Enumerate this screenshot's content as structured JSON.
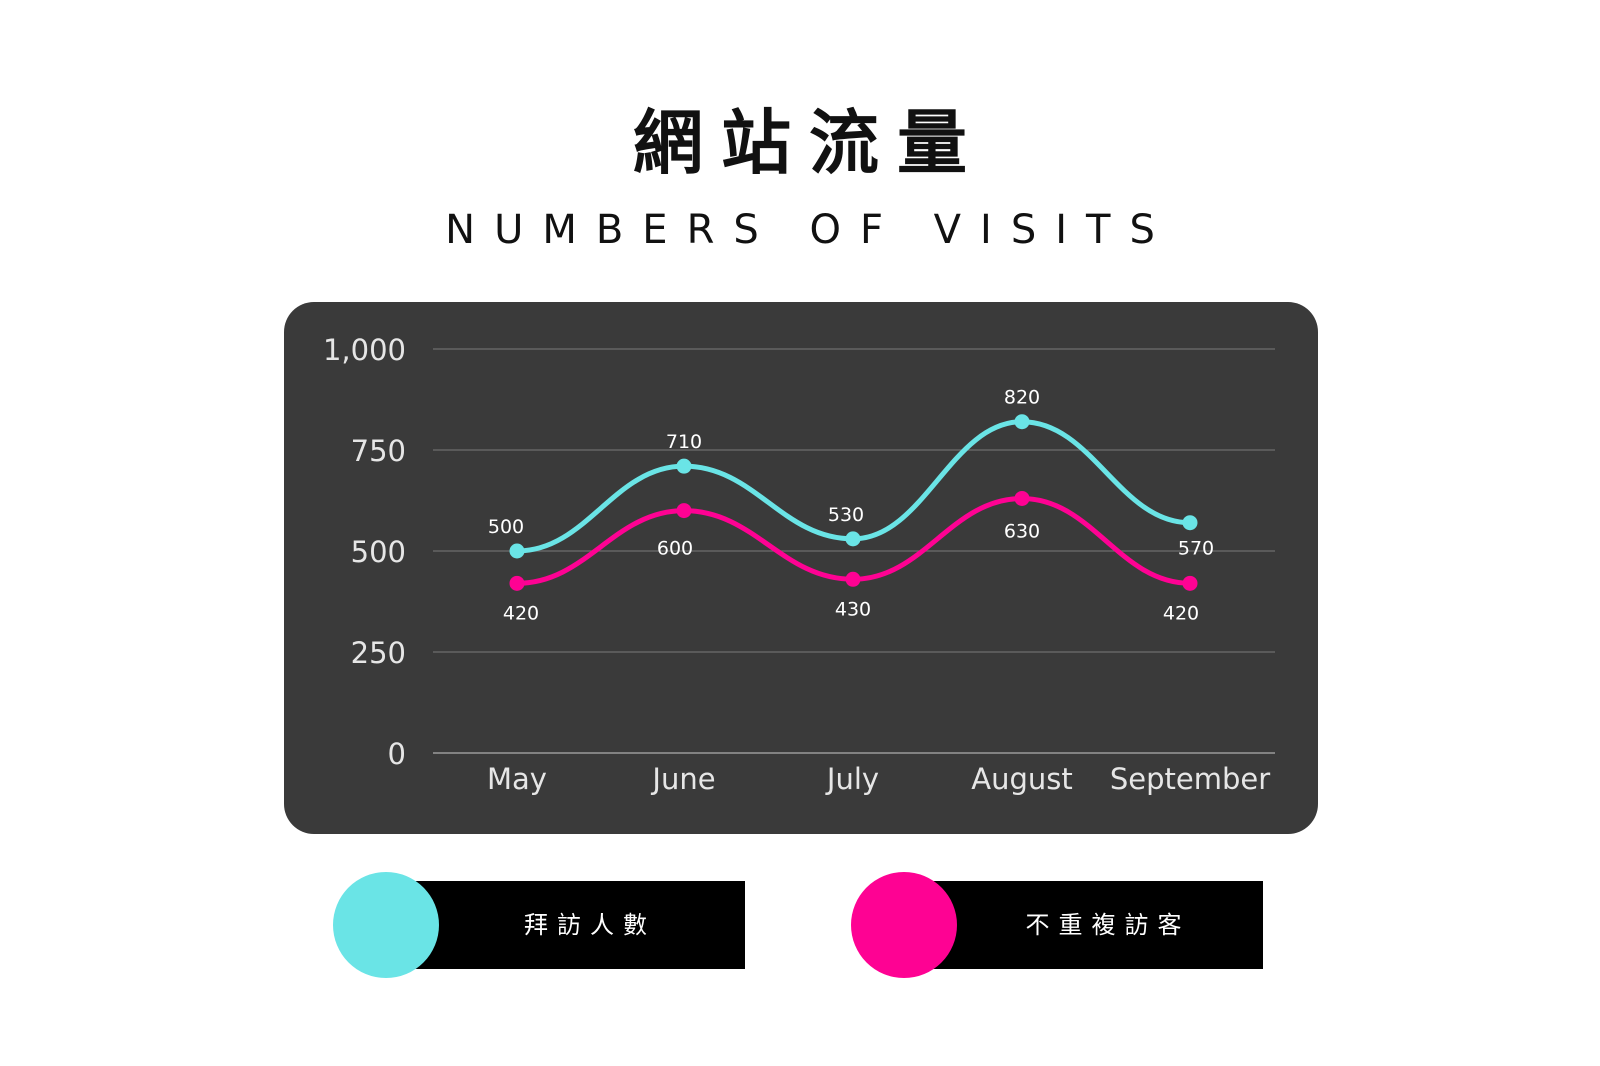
{
  "title": "網站流量",
  "subtitle": "NUMBERS OF VISITS",
  "colors": {
    "background": "#ffffff",
    "card": "#3a3a3a",
    "grid": "#6e6e6e",
    "text": "#ffffff",
    "series_visits": "#6ae4e6",
    "series_unique": "#fe0293"
  },
  "chart_data": {
    "type": "line",
    "categories": [
      "May",
      "June",
      "July",
      "August",
      "September"
    ],
    "ylim": [
      0,
      1000
    ],
    "yticks": [
      0,
      250,
      500,
      750,
      1000
    ],
    "ytick_labels": [
      "0",
      "250",
      "500",
      "750",
      "1,000"
    ],
    "grid": true,
    "smooth": true,
    "data_labels": true,
    "series": [
      {
        "name": "拜訪人數",
        "color": "#6ae4e6",
        "values": [
          500,
          710,
          530,
          820,
          570
        ]
      },
      {
        "name": "不重複訪客",
        "color": "#fe0293",
        "values": [
          420,
          600,
          430,
          630,
          420
        ]
      }
    ]
  },
  "legend": [
    {
      "label": "拜訪人數",
      "color": "#6ae4e6"
    },
    {
      "label": "不重複訪客",
      "color": "#fe0293"
    }
  ]
}
